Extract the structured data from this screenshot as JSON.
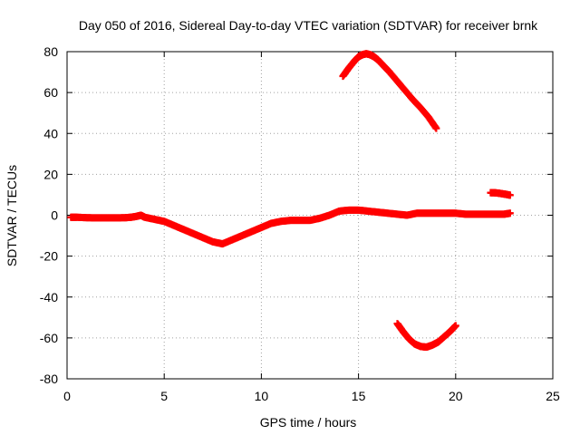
{
  "chart_data": {
    "type": "scatter",
    "title": "Day 050 of 2016, Sidereal Day-to-day VTEC variation (SDTVAR) for receiver brnk",
    "xlabel": "GPS time / hours",
    "ylabel": "SDTVAR / TECUs",
    "xlim": [
      0,
      25
    ],
    "ylim": [
      -80,
      80
    ],
    "xticks": [
      0,
      5,
      10,
      15,
      20,
      25
    ],
    "yticks": [
      -80,
      -60,
      -40,
      -20,
      0,
      20,
      40,
      60,
      80
    ],
    "grid": true,
    "marker": "plus",
    "color": "#ff0000",
    "series": [
      {
        "name": "main-track",
        "x": [
          0.2,
          0.5,
          1.0,
          1.5,
          2.0,
          2.5,
          3.0,
          3.3,
          3.6,
          3.8,
          4.0,
          4.5,
          5.0,
          5.5,
          6.0,
          6.5,
          7.0,
          7.5,
          8.0,
          8.5,
          9.0,
          9.5,
          10.0,
          10.5,
          11.0,
          11.5,
          12.0,
          12.5,
          13.0,
          13.5,
          14.0,
          14.5,
          15.0,
          15.5,
          16.0,
          16.5,
          17.0,
          17.5,
          18.0,
          18.5,
          19.0,
          19.5,
          20.0,
          20.5,
          21.0,
          21.5,
          22.0,
          22.5,
          22.8
        ],
        "y": [
          -1,
          -1,
          -1.2,
          -1.3,
          -1.3,
          -1.3,
          -1.2,
          -1,
          -0.5,
          0,
          -1,
          -2,
          -3,
          -5,
          -7,
          -9,
          -11,
          -13,
          -14,
          -12,
          -10,
          -8,
          -6,
          -4,
          -3,
          -2.5,
          -2.5,
          -2.5,
          -1.5,
          0,
          2,
          2.5,
          2.5,
          2,
          1.5,
          1,
          0.5,
          0,
          1,
          1,
          1,
          1,
          1,
          0.5,
          0.5,
          0.5,
          0.5,
          0.5,
          1
        ]
      },
      {
        "name": "upper-arc",
        "x": [
          14.2,
          14.5,
          14.8,
          15.0,
          15.2,
          15.4,
          15.6,
          15.8,
          16.0,
          16.3,
          16.6,
          17.0,
          17.4,
          17.8,
          18.2,
          18.6,
          19.0
        ],
        "y": [
          68,
          72,
          75.5,
          77.5,
          78.5,
          79,
          78.5,
          77.5,
          76,
          73,
          70,
          65.5,
          61,
          56.5,
          52.5,
          48,
          42.5
        ]
      },
      {
        "name": "lower-arc",
        "x": [
          17.0,
          17.3,
          17.6,
          17.9,
          18.2,
          18.5,
          18.8,
          19.1,
          19.4,
          19.7,
          20.0
        ],
        "y": [
          -53,
          -57,
          -60.5,
          -63,
          -64.2,
          -64.5,
          -63.5,
          -62,
          -59.5,
          -57,
          -54
        ]
      },
      {
        "name": "short-segment",
        "x": [
          21.8,
          22.0,
          22.2,
          22.4,
          22.6,
          22.8
        ],
        "y": [
          11,
          11,
          10.8,
          10.5,
          10.2,
          9.8
        ]
      }
    ]
  }
}
